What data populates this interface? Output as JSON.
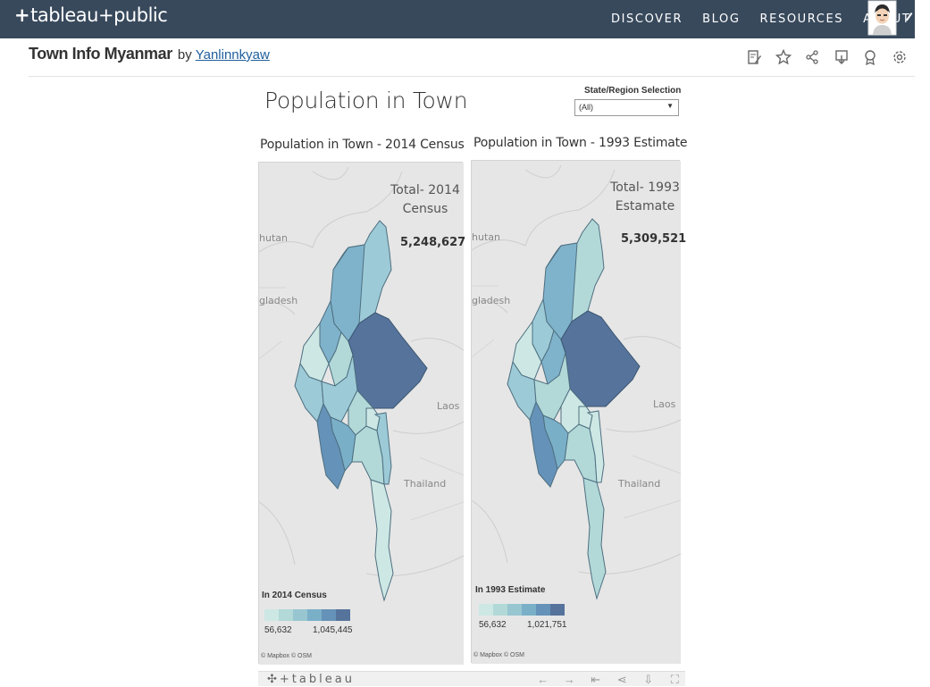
{
  "site": {
    "logo_text": "tableau",
    "logo_suffix": "public",
    "nav": [
      "DISCOVER",
      "BLOG",
      "RESOURCES",
      "ABOUT"
    ]
  },
  "viz": {
    "title": "Town Info Myanmar",
    "by": "by",
    "author": "Yanlinnkyaw"
  },
  "toolbar_icons": [
    "edit-icon",
    "star-icon",
    "share-icon",
    "download-icon",
    "award-icon",
    "gear-icon"
  ],
  "dashboard": {
    "title": "Population in Town",
    "filter": {
      "label": "State/Region Selection",
      "value": "(All)"
    }
  },
  "maps": {
    "left": {
      "title": "Population in Town - 2014 Census",
      "total_label_1": "Total- 2014",
      "total_label_2": "Census",
      "total_value": "5,248,627",
      "legend_title": "In 2014 Census",
      "legend_min": "56,632",
      "legend_max": "1,045,445"
    },
    "right": {
      "title": "Population in Town - 1993 Estimate",
      "total_label_1": "Total- 1993",
      "total_label_2": "Estamate",
      "total_value": "5,309,521",
      "legend_title": "In 1993 Estimate",
      "legend_min": "56,632",
      "legend_max": "1,021,751"
    },
    "countries": [
      "hutan",
      "gladesh",
      "Laos",
      "Thailand"
    ],
    "attribution": "© Mapbox  © OSM",
    "legend_colors": [
      "#cde8e4",
      "#b2d9d8",
      "#97c6d1",
      "#7aafc8",
      "#6592b8",
      "#56739c"
    ]
  },
  "footer": {
    "logo": "tableau",
    "icons": [
      "undo-icon",
      "redo-icon",
      "revert-icon",
      "share-icon",
      "download-icon",
      "fullscreen-icon"
    ]
  }
}
